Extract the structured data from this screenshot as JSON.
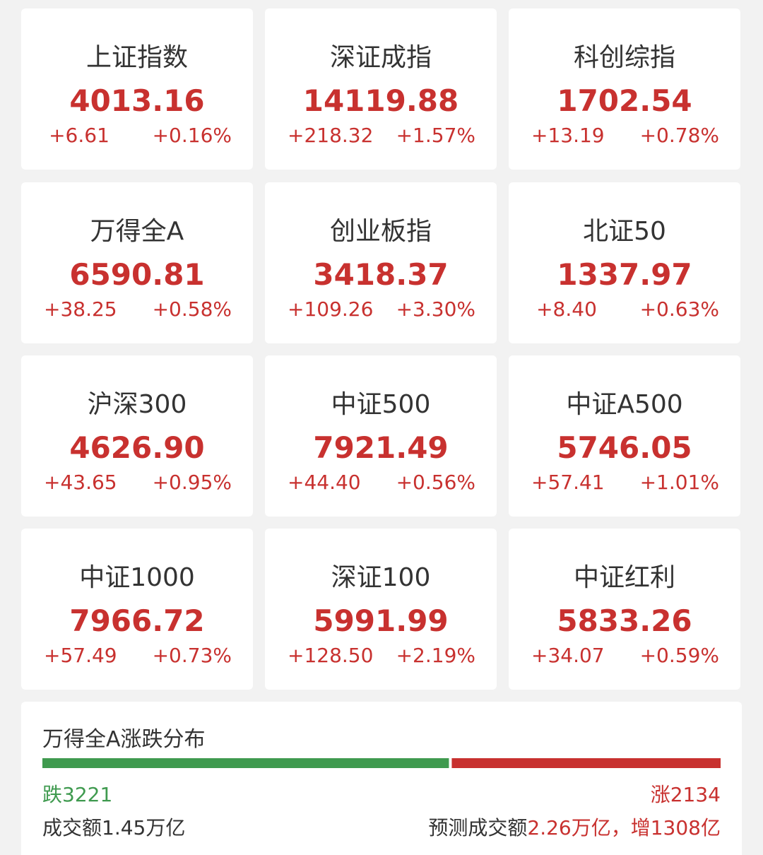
{
  "indices": [
    {
      "name": "上证指数",
      "value": "4013.16",
      "change": "+6.61",
      "pct": "+0.16%"
    },
    {
      "name": "深证成指",
      "value": "14119.88",
      "change": "+218.32",
      "pct": "+1.57%"
    },
    {
      "name": "科创综指",
      "value": "1702.54",
      "change": "+13.19",
      "pct": "+0.78%"
    },
    {
      "name": "万得全A",
      "value": "6590.81",
      "change": "+38.25",
      "pct": "+0.58%"
    },
    {
      "name": "创业板指",
      "value": "3418.37",
      "change": "+109.26",
      "pct": "+3.30%"
    },
    {
      "name": "北证50",
      "value": "1337.97",
      "change": "+8.40",
      "pct": "+0.63%"
    },
    {
      "name": "沪深300",
      "value": "4626.90",
      "change": "+43.65",
      "pct": "+0.95%"
    },
    {
      "name": "中证500",
      "value": "7921.49",
      "change": "+44.40",
      "pct": "+0.56%"
    },
    {
      "name": "中证A500",
      "value": "5746.05",
      "change": "+57.41",
      "pct": "+1.01%"
    },
    {
      "name": "中证1000",
      "value": "7966.72",
      "change": "+57.49",
      "pct": "+0.73%"
    },
    {
      "name": "深证100",
      "value": "5991.99",
      "change": "+128.50",
      "pct": "+2.19%"
    },
    {
      "name": "中证红利",
      "value": "5833.26",
      "change": "+34.07",
      "pct": "+0.59%"
    }
  ],
  "breadth": {
    "title": "万得全A涨跌分布",
    "down": {
      "label": "跌",
      "count": 3221,
      "color": "#3f9a4f"
    },
    "up": {
      "label": "涨",
      "count": 2134,
      "color": "#c8312f"
    },
    "turnover": {
      "label": "成交额",
      "value": "1.45万亿"
    },
    "forecast": {
      "label": "预测成交额",
      "value": "2.26万亿，增1308亿"
    }
  }
}
